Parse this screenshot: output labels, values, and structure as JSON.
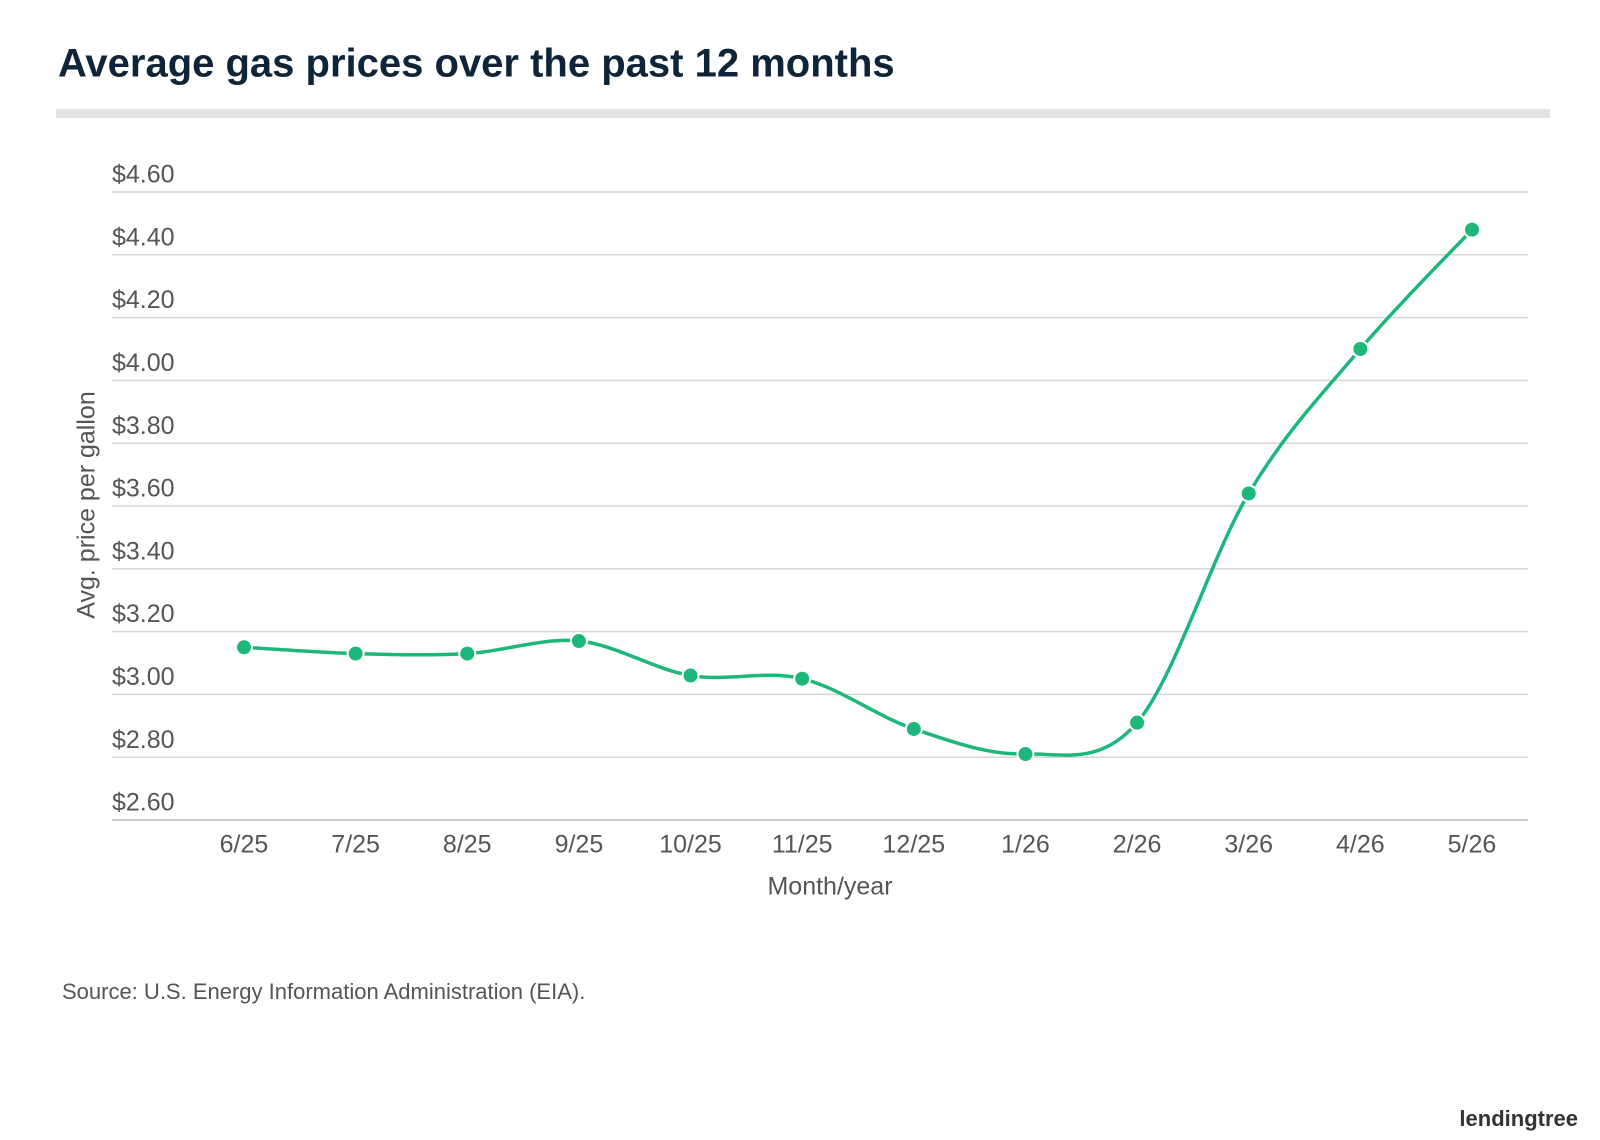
{
  "chart_data": {
    "type": "line",
    "title": "Average gas prices over the past 12 months",
    "x_label": "Month/year",
    "y_label": "Avg. price per gallon",
    "categories": [
      "6/25",
      "7/25",
      "8/25",
      "9/25",
      "10/25",
      "11/25",
      "12/25",
      "1/26",
      "2/26",
      "3/26",
      "4/26",
      "5/26"
    ],
    "values": [
      3.15,
      3.13,
      3.13,
      3.17,
      3.06,
      3.05,
      2.89,
      2.81,
      2.91,
      3.64,
      4.1,
      4.48
    ],
    "color": "#1db77b",
    "ylim": [
      2.6,
      4.6
    ],
    "yticks": [
      {
        "value": 2.6,
        "label": "$2.60"
      },
      {
        "value": 2.8,
        "label": "$2.80"
      },
      {
        "value": 3.0,
        "label": "$3.00"
      },
      {
        "value": 3.2,
        "label": "$3.20"
      },
      {
        "value": 3.4,
        "label": "$3.40"
      },
      {
        "value": 3.6,
        "label": "$3.60"
      },
      {
        "value": 3.8,
        "label": "$3.80"
      },
      {
        "value": 4.0,
        "label": "$4.00"
      },
      {
        "value": 4.2,
        "label": "$4.20"
      },
      {
        "value": 4.4,
        "label": "$4.40"
      },
      {
        "value": 4.6,
        "label": "$4.60"
      }
    ],
    "grid": true,
    "source": "Source: U.S. Energy Information Administration (EIA).",
    "logo": "lendingtree"
  }
}
